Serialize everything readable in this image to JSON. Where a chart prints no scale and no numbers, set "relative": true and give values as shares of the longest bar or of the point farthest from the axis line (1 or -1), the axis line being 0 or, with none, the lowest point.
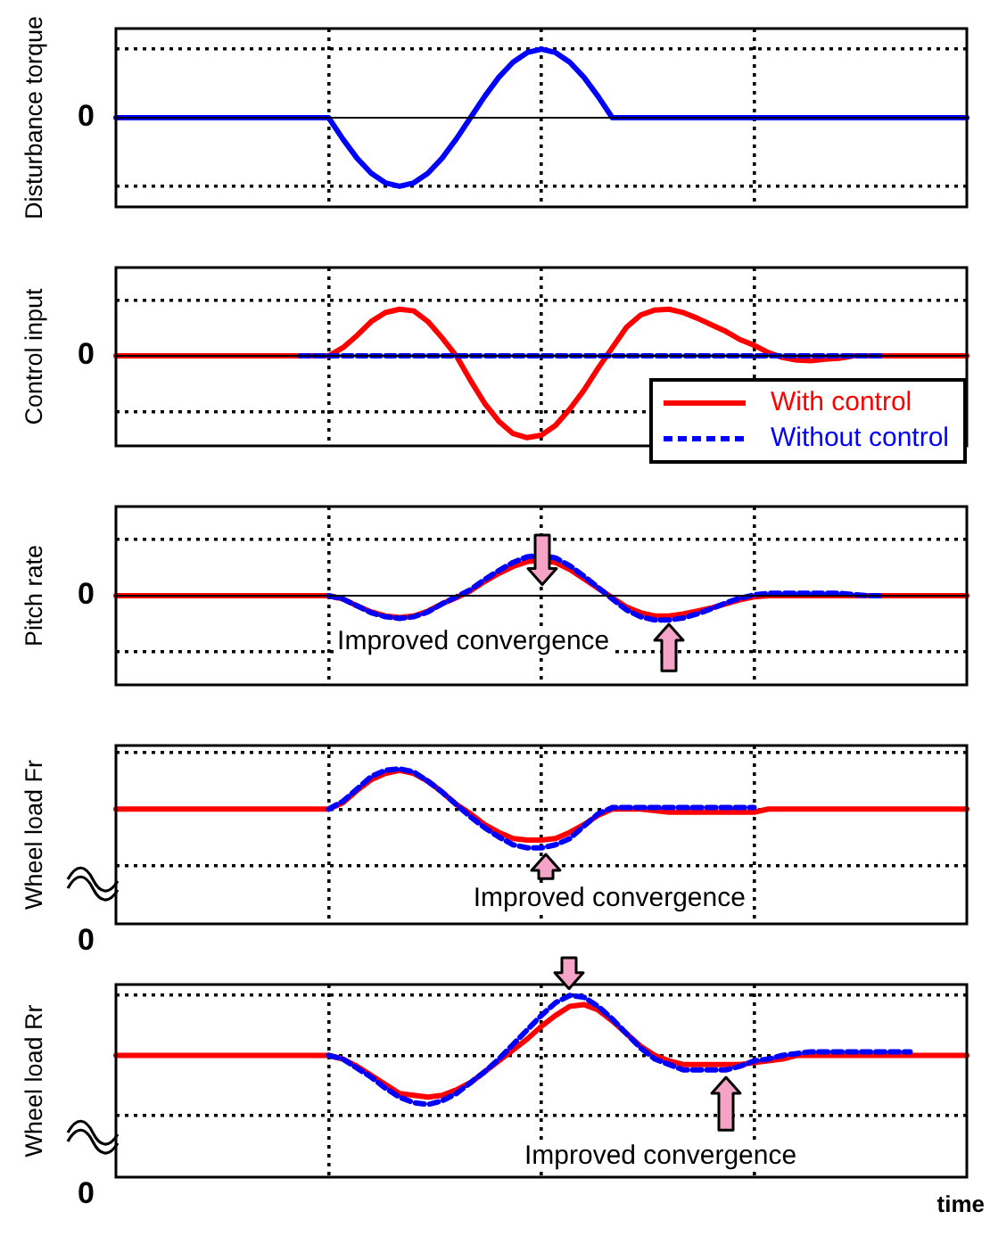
{
  "chart_data": [
    {
      "type": "line",
      "ylabel": "Disturbance torque",
      "relative": true,
      "grid": true,
      "categories": [
        null,
        null,
        null,
        null,
        null,
        null,
        null,
        null,
        null,
        null,
        null,
        null,
        null,
        null,
        null,
        null,
        null,
        null,
        null,
        null,
        null,
        null,
        null,
        null,
        null,
        null,
        null,
        null,
        null,
        null,
        null,
        null,
        null,
        null,
        null,
        null,
        null,
        null,
        null,
        null,
        null,
        null,
        null,
        null,
        null,
        null,
        null,
        null,
        null,
        null,
        null,
        null,
        null,
        null,
        null,
        null,
        null,
        null,
        null,
        null,
        null
      ],
      "ref_lines": [
        {
          "axis": "y",
          "value": 0,
          "label": "0"
        }
      ],
      "series": [
        {
          "color": "#0000ff",
          "values": [
            0,
            0,
            0,
            0,
            0,
            0,
            0,
            0,
            0,
            0,
            0,
            0,
            0,
            0,
            0,
            0,
            -0.31,
            -0.59,
            -0.81,
            -0.95,
            -1,
            -0.95,
            -0.81,
            -0.59,
            -0.31,
            0,
            0.31,
            0.59,
            0.81,
            0.95,
            1,
            0.95,
            0.81,
            0.59,
            0.31,
            0,
            0,
            0,
            0,
            0,
            0,
            0,
            0,
            0,
            0,
            0,
            0,
            0,
            0,
            0,
            0,
            0,
            0,
            0,
            0,
            0,
            0,
            0,
            0,
            0,
            0
          ]
        }
      ]
    },
    {
      "type": "line",
      "ylabel": "Control input",
      "relative": true,
      "grid": true,
      "legend": "bottom right",
      "categories": [
        null,
        null,
        null,
        null,
        null,
        null,
        null,
        null,
        null,
        null,
        null,
        null,
        null,
        null,
        null,
        null,
        null,
        null,
        null,
        null,
        null,
        null,
        null,
        null,
        null,
        null,
        null,
        null,
        null,
        null,
        null,
        null,
        null,
        null,
        null,
        null,
        null,
        null,
        null,
        null,
        null,
        null,
        null,
        null,
        null,
        null,
        null,
        null,
        null,
        null,
        null,
        null,
        null,
        null,
        null,
        null,
        null,
        null,
        null,
        null,
        null
      ],
      "ref_lines": [
        {
          "axis": "y",
          "value": 0,
          "label": "0"
        }
      ],
      "series": [
        {
          "name": "With control",
          "color": "#ff0000",
          "values": [
            0,
            0,
            0,
            0,
            0,
            0,
            0,
            0,
            0,
            0,
            0,
            0,
            0,
            0,
            0,
            0,
            0.1,
            0.25,
            0.42,
            0.53,
            0.57,
            0.55,
            0.42,
            0.22,
            0,
            -0.3,
            -0.58,
            -0.8,
            -0.95,
            -1,
            -0.97,
            -0.85,
            -0.65,
            -0.42,
            -0.15,
            0.1,
            0.35,
            0.5,
            0.56,
            0.57,
            0.53,
            0.46,
            0.38,
            0.3,
            0.2,
            0.13,
            0.04,
            -0.02,
            -0.05,
            -0.06,
            -0.04,
            -0.03,
            0,
            0,
            0,
            0,
            0,
            0,
            0,
            0,
            0
          ]
        },
        {
          "name": "Without control",
          "color": "#0000ff",
          "line_style": "dashed",
          "values": [
            null,
            null,
            null,
            null,
            null,
            null,
            null,
            null,
            null,
            null,
            null,
            null,
            null,
            0,
            0,
            0,
            0,
            0,
            0,
            0,
            0,
            0,
            0,
            0,
            0,
            0,
            0,
            0,
            0,
            0,
            0,
            0,
            0,
            0,
            0,
            0,
            0,
            0,
            0,
            0,
            0,
            0,
            0,
            0,
            0,
            0,
            0,
            0,
            0,
            0,
            0,
            0,
            0,
            0,
            0,
            null,
            null,
            null,
            null,
            null,
            null
          ]
        }
      ]
    },
    {
      "type": "line",
      "ylabel": "Pitch rate",
      "relative": true,
      "grid": true,
      "categories": [
        null,
        null,
        null,
        null,
        null,
        null,
        null,
        null,
        null,
        null,
        null,
        null,
        null,
        null,
        null,
        null,
        null,
        null,
        null,
        null,
        null,
        null,
        null,
        null,
        null,
        null,
        null,
        null,
        null,
        null,
        null,
        null,
        null,
        null,
        null,
        null,
        null,
        null,
        null,
        null,
        null,
        null,
        null,
        null,
        null,
        null,
        null,
        null,
        null,
        null,
        null,
        null,
        null,
        null,
        null,
        null,
        null,
        null,
        null,
        null,
        null
      ],
      "ref_lines": [
        {
          "axis": "y",
          "value": 0,
          "label": "0"
        }
      ],
      "annotations": [
        "Improved convergence"
      ],
      "series": [
        {
          "color": "#ff0000",
          "values": [
            0,
            0,
            0,
            0,
            0,
            0,
            0,
            0,
            0,
            0,
            0,
            0,
            0,
            0,
            0,
            0,
            -0.08,
            -0.25,
            -0.4,
            -0.5,
            -0.54,
            -0.5,
            -0.38,
            -0.2,
            -0.05,
            0.12,
            0.35,
            0.55,
            0.72,
            0.84,
            0.88,
            0.82,
            0.65,
            0.42,
            0.18,
            -0.05,
            -0.28,
            -0.42,
            -0.5,
            -0.5,
            -0.45,
            -0.38,
            -0.3,
            -0.2,
            -0.1,
            -0.03,
            0,
            0,
            0,
            0,
            0,
            0,
            0,
            0,
            0,
            0,
            0,
            0,
            0,
            0,
            0
          ]
        },
        {
          "color": "#0000ff",
          "line_style": "dashed",
          "values": [
            null,
            null,
            null,
            null,
            null,
            null,
            null,
            null,
            null,
            null,
            null,
            null,
            null,
            null,
            null,
            0,
            -0.08,
            -0.25,
            -0.42,
            -0.52,
            -0.56,
            -0.52,
            -0.4,
            -0.2,
            -0.03,
            0.15,
            0.4,
            0.62,
            0.82,
            0.96,
            1,
            0.93,
            0.74,
            0.48,
            0.2,
            -0.08,
            -0.35,
            -0.52,
            -0.6,
            -0.6,
            -0.55,
            -0.45,
            -0.32,
            -0.18,
            -0.06,
            0.02,
            0.06,
            0.06,
            0.06,
            0.06,
            0.06,
            0.06,
            0.03,
            0,
            0,
            null,
            null,
            null,
            null,
            null,
            null
          ]
        }
      ]
    },
    {
      "type": "line",
      "ylabel": "Wheel load Fr",
      "relative": true,
      "grid": true,
      "categories": [
        null,
        null,
        null,
        null,
        null,
        null,
        null,
        null,
        null,
        null,
        null,
        null,
        null,
        null,
        null,
        null,
        null,
        null,
        null,
        null,
        null,
        null,
        null,
        null,
        null,
        null,
        null,
        null,
        null,
        null,
        null,
        null,
        null,
        null,
        null,
        null,
        null,
        null,
        null,
        null,
        null,
        null,
        null,
        null,
        null,
        null,
        null,
        null,
        null,
        null,
        null,
        null,
        null,
        null,
        null,
        null,
        null,
        null,
        null,
        null,
        null
      ],
      "annotations": [
        "Improved convergence",
        "0"
      ],
      "series": [
        {
          "color": "#ff0000",
          "values": [
            0.74,
            0.74,
            0.74,
            0.74,
            0.74,
            0.74,
            0.74,
            0.74,
            0.74,
            0.74,
            0.74,
            0.74,
            0.74,
            0.74,
            0.74,
            0.74,
            0.78,
            0.86,
            0.93,
            0.97,
            0.99,
            0.97,
            0.92,
            0.85,
            0.77,
            0.71,
            0.64,
            0.59,
            0.55,
            0.54,
            0.54,
            0.55,
            0.59,
            0.64,
            0.7,
            0.74,
            0.74,
            0.74,
            0.73,
            0.72,
            0.72,
            0.72,
            0.72,
            0.72,
            0.72,
            0.72,
            0.74,
            0.74,
            0.74,
            0.74,
            0.74,
            0.74,
            0.74,
            0.74,
            0.74,
            0.74,
            0.74,
            0.74,
            0.74,
            0.74,
            0.74
          ]
        },
        {
          "color": "#0000ff",
          "line_style": "dashed",
          "values": [
            null,
            null,
            null,
            null,
            null,
            null,
            null,
            null,
            null,
            null,
            null,
            null,
            null,
            null,
            null,
            0.74,
            0.79,
            0.87,
            0.95,
            0.99,
            1,
            0.98,
            0.92,
            0.85,
            0.77,
            0.69,
            0.62,
            0.56,
            0.51,
            0.49,
            0.49,
            0.51,
            0.55,
            0.63,
            0.71,
            0.75,
            0.75,
            0.75,
            0.75,
            0.75,
            0.75,
            0.75,
            0.75,
            0.75,
            0.75,
            0.75,
            null,
            null,
            null,
            null,
            null,
            null,
            null,
            null,
            null,
            null,
            null,
            null,
            null,
            null,
            null
          ]
        }
      ]
    },
    {
      "type": "line",
      "ylabel": "Wheel load Rr",
      "xlabel": "time",
      "relative": true,
      "grid": true,
      "categories": [
        null,
        null,
        null,
        null,
        null,
        null,
        null,
        null,
        null,
        null,
        null,
        null,
        null,
        null,
        null,
        null,
        null,
        null,
        null,
        null,
        null,
        null,
        null,
        null,
        null,
        null,
        null,
        null,
        null,
        null,
        null,
        null,
        null,
        null,
        null,
        null,
        null,
        null,
        null,
        null,
        null,
        null,
        null,
        null,
        null,
        null,
        null,
        null,
        null,
        null,
        null,
        null,
        null,
        null,
        null,
        null,
        null,
        null,
        null,
        null,
        null
      ],
      "annotations": [
        "Improved convergence",
        "0"
      ],
      "series": [
        {
          "color": "#ff0000",
          "values": [
            0.67,
            0.67,
            0.67,
            0.67,
            0.67,
            0.67,
            0.67,
            0.67,
            0.67,
            0.67,
            0.67,
            0.67,
            0.67,
            0.67,
            0.67,
            0.67,
            0.65,
            0.61,
            0.56,
            0.51,
            0.46,
            0.45,
            0.44,
            0.45,
            0.48,
            0.52,
            0.58,
            0.64,
            0.7,
            0.76,
            0.83,
            0.89,
            0.94,
            0.95,
            0.92,
            0.86,
            0.79,
            0.72,
            0.67,
            0.64,
            0.62,
            0.62,
            0.62,
            0.62,
            0.62,
            0.63,
            0.64,
            0.65,
            0.67,
            0.67,
            0.67,
            0.67,
            0.67,
            0.67,
            0.67,
            0.67,
            0.67,
            0.67,
            0.67,
            0.67,
            0.67
          ]
        },
        {
          "color": "#0000ff",
          "line_style": "dashed",
          "values": [
            null,
            null,
            null,
            null,
            null,
            null,
            null,
            null,
            null,
            null,
            null,
            null,
            null,
            null,
            null,
            0.67,
            0.65,
            0.6,
            0.55,
            0.49,
            0.44,
            0.41,
            0.4,
            0.42,
            0.46,
            0.52,
            0.58,
            0.65,
            0.73,
            0.81,
            0.89,
            0.96,
            1,
            0.99,
            0.94,
            0.87,
            0.79,
            0.71,
            0.65,
            0.62,
            0.59,
            0.59,
            0.59,
            0.59,
            0.61,
            0.64,
            0.65,
            0.67,
            0.68,
            0.69,
            0.69,
            0.69,
            0.69,
            0.69,
            0.69,
            0.69,
            0.69,
            null,
            null,
            null,
            null
          ]
        }
      ]
    }
  ]
}
